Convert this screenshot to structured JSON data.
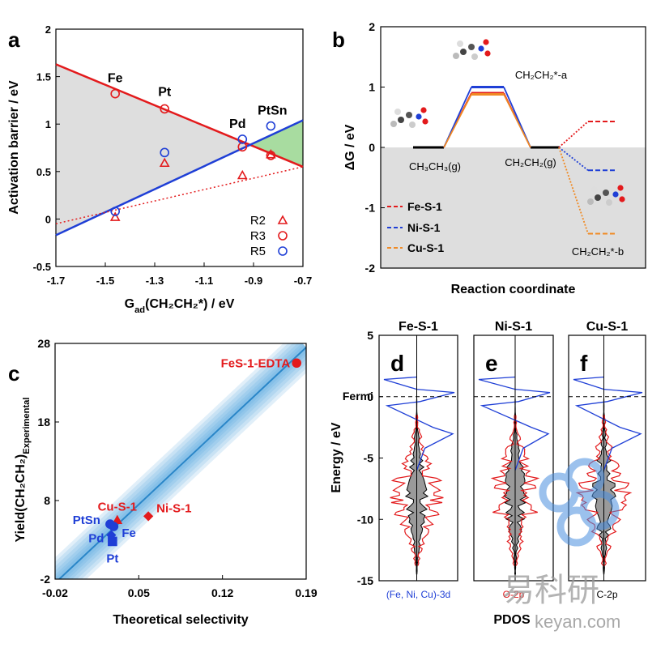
{
  "watermark": {
    "chinese": "易科研",
    "site": "keyan.com"
  },
  "chart_data": [
    {
      "panel": "a",
      "type": "scatter",
      "xlabel_main": "G",
      "xlabel_sub": "ad",
      "xlabel_rest": "(CH₂CH₂*) / eV",
      "ylabel": "Activation barrier / eV",
      "xlim": [
        -1.7,
        -0.7
      ],
      "ylim": [
        -0.5,
        2
      ],
      "x_ticks": [
        "-1.7",
        "-1.5",
        "-1.3",
        "-1.1",
        "-0.9",
        "-0.7"
      ],
      "y_ticks": [
        "-0.5",
        "0",
        "0.5",
        "1",
        "1.5",
        "2"
      ],
      "metals": [
        "Fe",
        "Pt",
        "Pd",
        "PtSn"
      ],
      "metal_x": [
        -1.46,
        -1.26,
        -0.945,
        -0.83
      ],
      "series": [
        {
          "name": "R2",
          "marker": "triangle",
          "color": "#e31a1c",
          "x": [
            -1.46,
            -1.26,
            -0.945,
            -0.83
          ],
          "y": [
            0.02,
            0.59,
            0.46,
            0.68
          ]
        },
        {
          "name": "R3",
          "marker": "circle",
          "color": "#e31a1c",
          "x": [
            -1.46,
            -1.26,
            -0.945,
            -0.83
          ],
          "y": [
            1.32,
            1.16,
            0.76,
            0.67
          ]
        },
        {
          "name": "R5",
          "marker": "circle",
          "color": "#1f3fd6",
          "x": [
            -1.46,
            -1.26,
            -0.945,
            -0.83
          ],
          "y": [
            0.08,
            0.7,
            0.84,
            0.98
          ]
        }
      ],
      "lines": {
        "red_solid": [
          [
            -1.7,
            1.63
          ],
          [
            -0.7,
            0.55
          ]
        ],
        "blue_solid": [
          [
            -1.7,
            -0.17
          ],
          [
            -0.7,
            1.04
          ]
        ],
        "red_dotted": [
          [
            -1.7,
            -0.05
          ],
          [
            -0.7,
            0.55
          ]
        ]
      }
    },
    {
      "panel": "b",
      "type": "line",
      "ylabel": "ΔG / eV",
      "xlabel": "Reaction coordinate",
      "ylim": [
        -2,
        2
      ],
      "y_ticks": [
        "-2",
        "-1",
        "0",
        "1",
        "2"
      ],
      "states": [
        "CH₃CH₃(g)",
        "CH₂CH₂*-a",
        "CH₂CH₂(g)",
        "CH₂CH₂*-b"
      ],
      "series": [
        {
          "name": "Fe-S-1",
          "color": "#e31a1c",
          "energies": [
            0,
            0.9,
            0,
            0.43
          ]
        },
        {
          "name": "Ni-S-1",
          "color": "#1f3fd6",
          "energies": [
            0,
            1.0,
            0,
            -0.38
          ]
        },
        {
          "name": "Cu-S-1",
          "color": "#f08a24",
          "energies": [
            0,
            0.88,
            0,
            -1.43
          ]
        }
      ]
    },
    {
      "panel": "c",
      "type": "scatter",
      "xlabel": "Theoretical selectivity",
      "ylabel_main": "Yield(CH₂CH₂)",
      "ylabel_sub": "Experimental",
      "xlim": [
        -0.02,
        0.19
      ],
      "ylim": [
        -2,
        28
      ],
      "x_ticks": [
        "-0.02",
        "0.05",
        "0.12",
        "0.19"
      ],
      "y_ticks": [
        "-2",
        "8",
        "18",
        "28"
      ],
      "points": [
        {
          "label": "FeS-1-EDTA",
          "x": 0.182,
          "y": 25.5,
          "color": "#e31a1c",
          "marker": "circle"
        },
        {
          "label": "Ni-S-1",
          "x": 0.058,
          "y": 6.0,
          "color": "#e31a1c",
          "marker": "diamond"
        },
        {
          "label": "Cu-S-1",
          "x": 0.032,
          "y": 5.5,
          "color": "#e31a1c",
          "marker": "triangle"
        },
        {
          "label": "PtSn",
          "x": 0.026,
          "y": 5.0,
          "color": "#1f3fd6",
          "marker": "circle"
        },
        {
          "label": "Fe",
          "x": 0.029,
          "y": 4.7,
          "color": "#1f3fd6",
          "marker": "circle"
        },
        {
          "label": "Pd",
          "x": 0.027,
          "y": 3.6,
          "color": "#1f3fd6",
          "marker": "diamond"
        },
        {
          "label": "Pt",
          "x": 0.028,
          "y": 2.8,
          "color": "#1f3fd6",
          "marker": "square"
        }
      ],
      "fit_line": [
        [
          -0.02,
          -2.5
        ],
        [
          0.19,
          27.5
        ]
      ]
    },
    {
      "panel": "d-f",
      "type": "line",
      "ylabel": "Energy / eV",
      "xlabel": "PDOS",
      "ylim": [
        -15,
        5
      ],
      "y_ticks": [
        "5",
        "0",
        "-5",
        "-10",
        "-15"
      ],
      "fermi_label": "Fermi",
      "fermi_level": 0,
      "subpanels": [
        {
          "letter": "d",
          "title": "Fe-S-1",
          "species": "(Fe, Ni, Cu)-3d",
          "species_color": "#1f3fd6"
        },
        {
          "letter": "e",
          "title": "Ni-S-1",
          "species": "O-2p",
          "species_color": "#e31a1c"
        },
        {
          "letter": "f",
          "title": "Cu-S-1",
          "species": "C-2p",
          "species_color": "#000000"
        }
      ]
    }
  ]
}
